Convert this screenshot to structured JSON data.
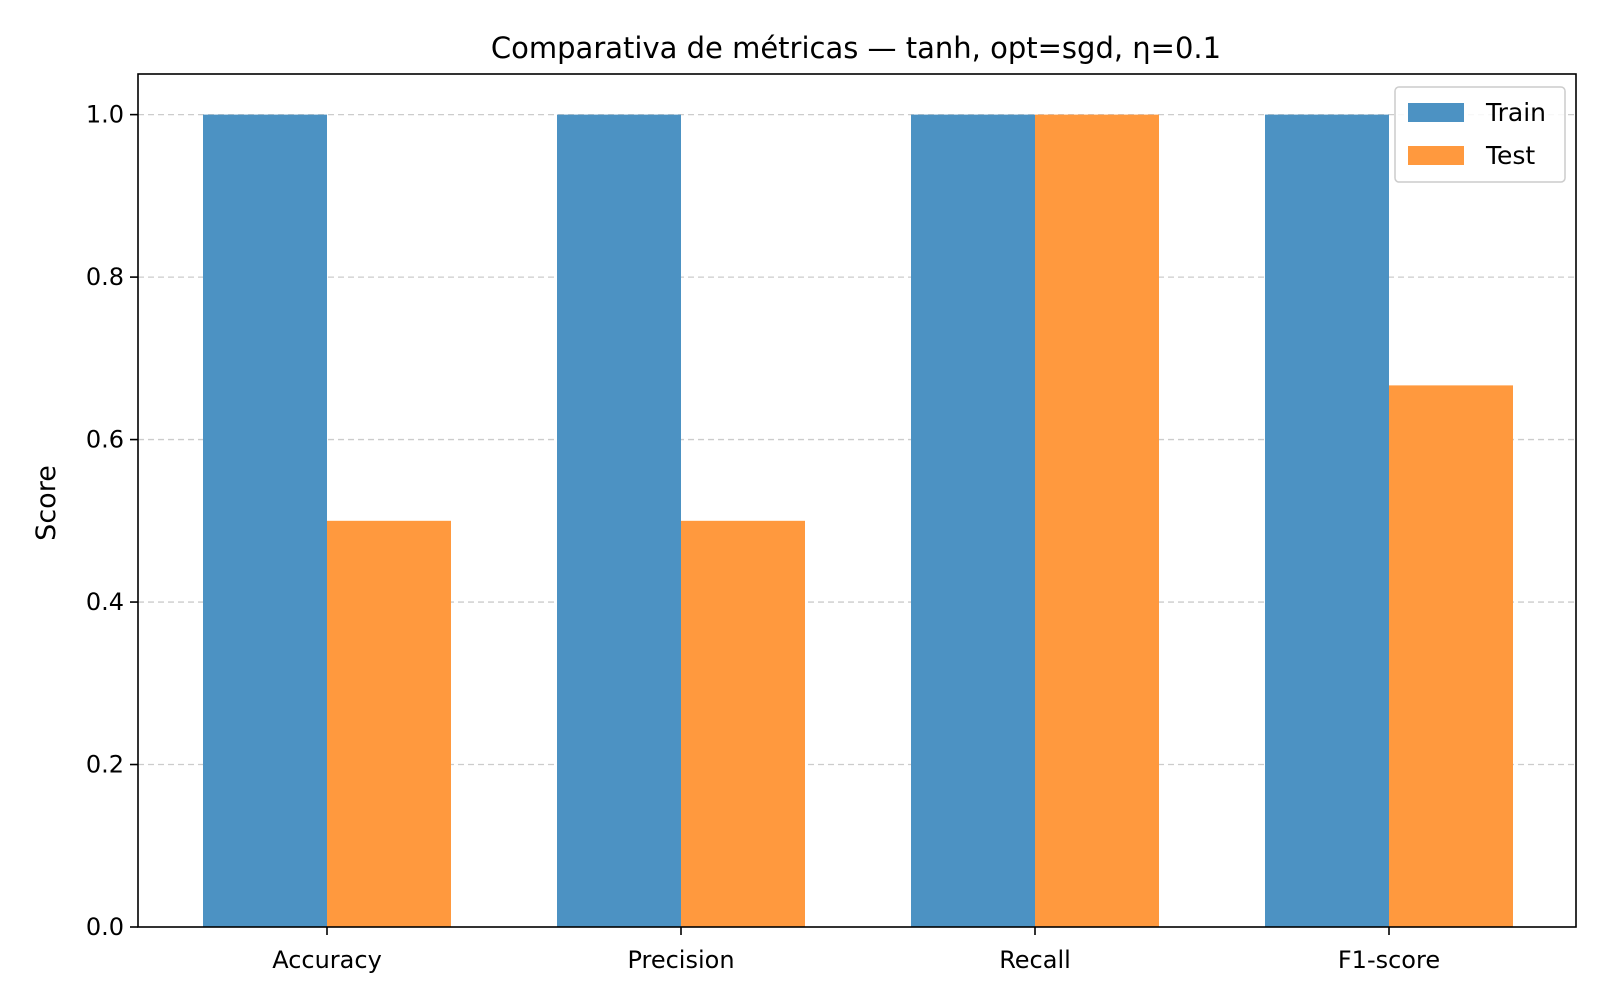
{
  "chart_data": {
    "type": "bar",
    "title": "Comparativa de métricas — tanh, opt=sgd, η=0.1",
    "xlabel": "",
    "ylabel": "Score",
    "categories": [
      "Accuracy",
      "Precision",
      "Recall",
      "F1-score"
    ],
    "series": [
      {
        "name": "Train",
        "values": [
          1.0,
          1.0,
          1.0,
          1.0
        ],
        "color": "#4c92c3"
      },
      {
        "name": "Test",
        "values": [
          0.5,
          0.5,
          1.0,
          0.6667
        ],
        "color": "#ff993e"
      }
    ],
    "ylim": [
      0,
      1.05
    ],
    "yticks": [
      0.0,
      0.2,
      0.4,
      0.6,
      0.8,
      1.0
    ],
    "ytick_labels": [
      "0.0",
      "0.2",
      "0.4",
      "0.6",
      "0.8",
      "1.0"
    ],
    "grid": "horizontal dashed",
    "legend_position": "top-right"
  }
}
